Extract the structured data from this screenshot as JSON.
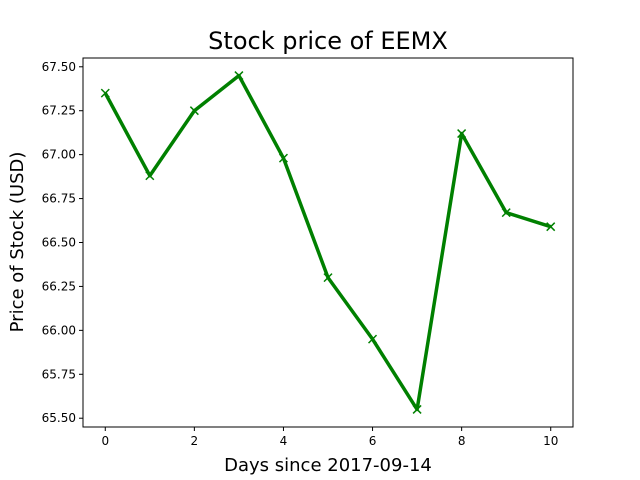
{
  "chart_data": {
    "type": "line",
    "title": "Stock price of EEMX",
    "xlabel": "Days since 2017-09-14",
    "ylabel": "Price of Stock (USD)",
    "xlim": [
      -0.5,
      10.5
    ],
    "ylim": [
      65.45,
      67.55
    ],
    "xticks": [
      0,
      2,
      4,
      6,
      8,
      10
    ],
    "xtick_labels": [
      "0",
      "2",
      "4",
      "6",
      "8",
      "10"
    ],
    "yticks": [
      65.5,
      65.75,
      66.0,
      66.25,
      66.5,
      66.75,
      67.0,
      67.25,
      67.5
    ],
    "ytick_labels": [
      "65.50",
      "65.75",
      "66.00",
      "66.25",
      "66.50",
      "66.75",
      "67.00",
      "67.25",
      "67.50"
    ],
    "grid": false,
    "series": [
      {
        "color": "#008000",
        "marker": "x",
        "x": [
          0,
          1,
          2,
          3,
          4,
          5,
          6,
          7,
          8,
          9,
          10
        ],
        "y": [
          67.35,
          66.88,
          67.25,
          67.45,
          66.98,
          66.3,
          65.95,
          65.55,
          67.12,
          66.67,
          66.59
        ]
      }
    ]
  }
}
